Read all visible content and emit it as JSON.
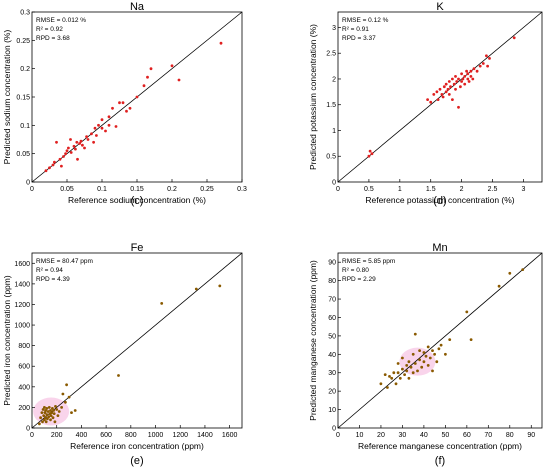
{
  "chart_data": [
    {
      "type": "scatter",
      "letter": "(c)",
      "title": "Na",
      "xlabel": "Reference sodium concentration (%)",
      "ylabel": "Predicted sodium concentration (%)",
      "xlim": [
        0,
        0.3
      ],
      "ylim": [
        0,
        0.3
      ],
      "xticks": [
        0,
        0.05,
        0.1,
        0.15,
        0.2,
        0.25,
        0.3
      ],
      "yticks": [
        0,
        0.05,
        0.1,
        0.15,
        0.2,
        0.25,
        0.3
      ],
      "tick_labels_x": [
        "0",
        "0.05",
        "0.1",
        "0.15",
        "0.2",
        "0.25",
        "0.3"
      ],
      "tick_labels_y": [
        "0",
        "0.05",
        "0.1",
        "0.15",
        "0.2",
        "0.25",
        "0.3"
      ],
      "stats": [
        "RMSE = 0.012 %",
        "R² = 0.92",
        "RPD = 3.68"
      ],
      "identity_line": true,
      "point_color": "#e02020",
      "shade_color": "#ffffff",
      "points": [
        [
          0.02,
          0.02
        ],
        [
          0.025,
          0.025
        ],
        [
          0.03,
          0.03
        ],
        [
          0.032,
          0.035
        ],
        [
          0.035,
          0.07
        ],
        [
          0.04,
          0.04
        ],
        [
          0.042,
          0.028
        ],
        [
          0.045,
          0.045
        ],
        [
          0.048,
          0.05
        ],
        [
          0.05,
          0.055
        ],
        [
          0.052,
          0.06
        ],
        [
          0.055,
          0.075
        ],
        [
          0.056,
          0.052
        ],
        [
          0.06,
          0.063
        ],
        [
          0.062,
          0.058
        ],
        [
          0.064,
          0.07
        ],
        [
          0.065,
          0.04
        ],
        [
          0.068,
          0.068
        ],
        [
          0.07,
          0.072
        ],
        [
          0.072,
          0.065
        ],
        [
          0.075,
          0.06
        ],
        [
          0.078,
          0.08
        ],
        [
          0.08,
          0.075
        ],
        [
          0.085,
          0.085
        ],
        [
          0.088,
          0.07
        ],
        [
          0.09,
          0.095
        ],
        [
          0.092,
          0.082
        ],
        [
          0.095,
          0.1
        ],
        [
          0.1,
          0.095
        ],
        [
          0.1,
          0.11
        ],
        [
          0.105,
          0.09
        ],
        [
          0.11,
          0.115
        ],
        [
          0.11,
          0.1
        ],
        [
          0.115,
          0.13
        ],
        [
          0.12,
          0.098
        ],
        [
          0.125,
          0.14
        ],
        [
          0.13,
          0.14
        ],
        [
          0.135,
          0.125
        ],
        [
          0.14,
          0.13
        ],
        [
          0.15,
          0.15
        ],
        [
          0.16,
          0.17
        ],
        [
          0.165,
          0.185
        ],
        [
          0.17,
          0.2
        ],
        [
          0.2,
          0.205
        ],
        [
          0.21,
          0.18
        ],
        [
          0.27,
          0.245
        ]
      ]
    },
    {
      "type": "scatter",
      "letter": "(d)",
      "title": "K",
      "xlabel": "Reference potassium concentration  (%)",
      "ylabel": "Predicted potassium concentration (%)",
      "xlim": [
        0,
        3.3
      ],
      "ylim": [
        0,
        3.3
      ],
      "xticks": [
        0,
        0.5,
        1,
        1.5,
        2,
        2.5,
        3
      ],
      "yticks": [
        0,
        0.5,
        1,
        1.5,
        2,
        2.5,
        3
      ],
      "tick_labels_x": [
        "0",
        "0.5",
        "1",
        "1.5",
        "2",
        "2.5",
        "3"
      ],
      "tick_labels_y": [
        "0",
        "0.5",
        "1",
        "1.5",
        "2",
        "2.5",
        "3"
      ],
      "stats": [
        "RMSE = 0.12 %",
        "R² = 0.91",
        "RPD = 3.37"
      ],
      "identity_line": true,
      "point_color": "#e02020",
      "shade_color": "#ffffff",
      "points": [
        [
          0.5,
          0.5
        ],
        [
          0.55,
          0.55
        ],
        [
          0.52,
          0.6
        ],
        [
          1.45,
          1.6
        ],
        [
          1.5,
          1.55
        ],
        [
          1.55,
          1.7
        ],
        [
          1.6,
          1.75
        ],
        [
          1.62,
          1.6
        ],
        [
          1.65,
          1.8
        ],
        [
          1.68,
          1.7
        ],
        [
          1.7,
          1.65
        ],
        [
          1.72,
          1.85
        ],
        [
          1.75,
          1.9
        ],
        [
          1.75,
          1.75
        ],
        [
          1.78,
          1.8
        ],
        [
          1.8,
          1.7
        ],
        [
          1.8,
          1.95
        ],
        [
          1.82,
          1.85
        ],
        [
          1.85,
          1.6
        ],
        [
          1.85,
          2.0
        ],
        [
          1.88,
          1.9
        ],
        [
          1.9,
          1.8
        ],
        [
          1.9,
          2.05
        ],
        [
          1.92,
          1.95
        ],
        [
          1.95,
          1.45
        ],
        [
          1.95,
          2.0
        ],
        [
          1.98,
          1.85
        ],
        [
          2.0,
          2.1
        ],
        [
          2.0,
          1.95
        ],
        [
          2.02,
          2.0
        ],
        [
          2.05,
          2.05
        ],
        [
          2.05,
          1.9
        ],
        [
          2.08,
          2.15
        ],
        [
          2.1,
          2.0
        ],
        [
          2.1,
          2.1
        ],
        [
          2.12,
          1.95
        ],
        [
          2.15,
          2.15
        ],
        [
          2.15,
          2.05
        ],
        [
          2.18,
          2.0
        ],
        [
          2.2,
          2.2
        ],
        [
          2.25,
          2.15
        ],
        [
          2.3,
          2.25
        ],
        [
          2.35,
          2.3
        ],
        [
          2.4,
          2.45
        ],
        [
          2.42,
          2.25
        ],
        [
          2.45,
          2.4
        ],
        [
          2.85,
          2.8
        ]
      ]
    },
    {
      "type": "scatter",
      "letter": "(e)",
      "title": "Fe",
      "xlabel": "Reference iron concentration (ppm)",
      "ylabel": "Predicted iron concentration (ppm)",
      "xlim": [
        0,
        1700
      ],
      "ylim": [
        0,
        1700
      ],
      "xticks": [
        0,
        200,
        400,
        600,
        800,
        1000,
        1200,
        1400,
        1600
      ],
      "yticks": [
        0,
        200,
        400,
        600,
        800,
        1000,
        1200,
        1400,
        1600
      ],
      "tick_labels_x": [
        "0",
        "200",
        "400",
        "600",
        "800",
        "1000",
        "1200",
        "1400",
        "1600"
      ],
      "tick_labels_y": [
        "0",
        "200",
        "400",
        "600",
        "800",
        "1000",
        "1200",
        "1400",
        "1600"
      ],
      "stats": [
        "RMSE = 80.47 ppm",
        "R² = 0.94",
        "RPD = 4.39"
      ],
      "identity_line": true,
      "point_color": "#8a5a00",
      "shade_color": "#f7c9e6",
      "points": [
        [
          60,
          40
        ],
        [
          70,
          100
        ],
        [
          80,
          150
        ],
        [
          85,
          60
        ],
        [
          90,
          180
        ],
        [
          95,
          120
        ],
        [
          100,
          80
        ],
        [
          100,
          200
        ],
        [
          105,
          150
        ],
        [
          110,
          100
        ],
        [
          110,
          170
        ],
        [
          115,
          60
        ],
        [
          120,
          130
        ],
        [
          120,
          190
        ],
        [
          125,
          90
        ],
        [
          130,
          160
        ],
        [
          135,
          110
        ],
        [
          140,
          200
        ],
        [
          145,
          140
        ],
        [
          150,
          80
        ],
        [
          150,
          170
        ],
        [
          155,
          120
        ],
        [
          160,
          150
        ],
        [
          165,
          190
        ],
        [
          170,
          100
        ],
        [
          175,
          170
        ],
        [
          180,
          140
        ],
        [
          185,
          60
        ],
        [
          190,
          210
        ],
        [
          200,
          180
        ],
        [
          210,
          120
        ],
        [
          220,
          160
        ],
        [
          240,
          200
        ],
        [
          250,
          330
        ],
        [
          270,
          250
        ],
        [
          280,
          420
        ],
        [
          300,
          300
        ],
        [
          320,
          150
        ],
        [
          350,
          170
        ],
        [
          700,
          510
        ],
        [
          1050,
          1210
        ],
        [
          1330,
          1350
        ],
        [
          1520,
          1380
        ]
      ]
    },
    {
      "type": "scatter",
      "letter": "(f)",
      "title": "Mn",
      "xlabel": "Reference manganese concentration (ppm)",
      "ylabel": "Predicted manganese concentration (ppm)",
      "xlim": [
        0,
        95
      ],
      "ylim": [
        0,
        95
      ],
      "xticks": [
        0,
        10,
        20,
        30,
        40,
        50,
        60,
        70,
        80,
        90
      ],
      "yticks": [
        0,
        10,
        20,
        30,
        40,
        50,
        60,
        70,
        80,
        90
      ],
      "tick_labels_x": [
        "0",
        "10",
        "20",
        "30",
        "40",
        "50",
        "60",
        "70",
        "80",
        "90"
      ],
      "tick_labels_y": [
        "0",
        "10",
        "20",
        "30",
        "40",
        "50",
        "60",
        "70",
        "80",
        "90"
      ],
      "stats": [
        "RMSE = 5.85 ppm",
        "R² = 0.80",
        "RPD = 2.29"
      ],
      "identity_line": true,
      "point_color": "#8a5a00",
      "shade_color": "#f7c9e6",
      "points": [
        [
          20,
          24
        ],
        [
          22,
          29
        ],
        [
          23,
          22
        ],
        [
          24,
          28
        ],
        [
          25,
          27
        ],
        [
          26,
          30
        ],
        [
          27,
          24
        ],
        [
          28,
          35
        ],
        [
          28,
          30
        ],
        [
          29,
          27
        ],
        [
          30,
          32
        ],
        [
          30,
          38
        ],
        [
          31,
          29
        ],
        [
          32,
          34
        ],
        [
          32,
          31
        ],
        [
          33,
          36
        ],
        [
          33,
          27
        ],
        [
          34,
          33
        ],
        [
          35,
          40
        ],
        [
          35,
          30
        ],
        [
          36,
          51
        ],
        [
          36,
          35
        ],
        [
          37,
          31
        ],
        [
          38,
          37
        ],
        [
          38,
          42
        ],
        [
          39,
          33
        ],
        [
          40,
          36
        ],
        [
          40,
          41
        ],
        [
          41,
          39
        ],
        [
          42,
          34
        ],
        [
          42,
          44
        ],
        [
          43,
          38
        ],
        [
          44,
          31
        ],
        [
          44,
          42
        ],
        [
          45,
          40
        ],
        [
          46,
          36
        ],
        [
          47,
          43
        ],
        [
          48,
          45
        ],
        [
          50,
          40
        ],
        [
          52,
          48
        ],
        [
          60,
          63
        ],
        [
          62,
          48
        ],
        [
          75,
          77
        ],
        [
          80,
          84
        ],
        [
          86,
          86
        ]
      ]
    }
  ]
}
